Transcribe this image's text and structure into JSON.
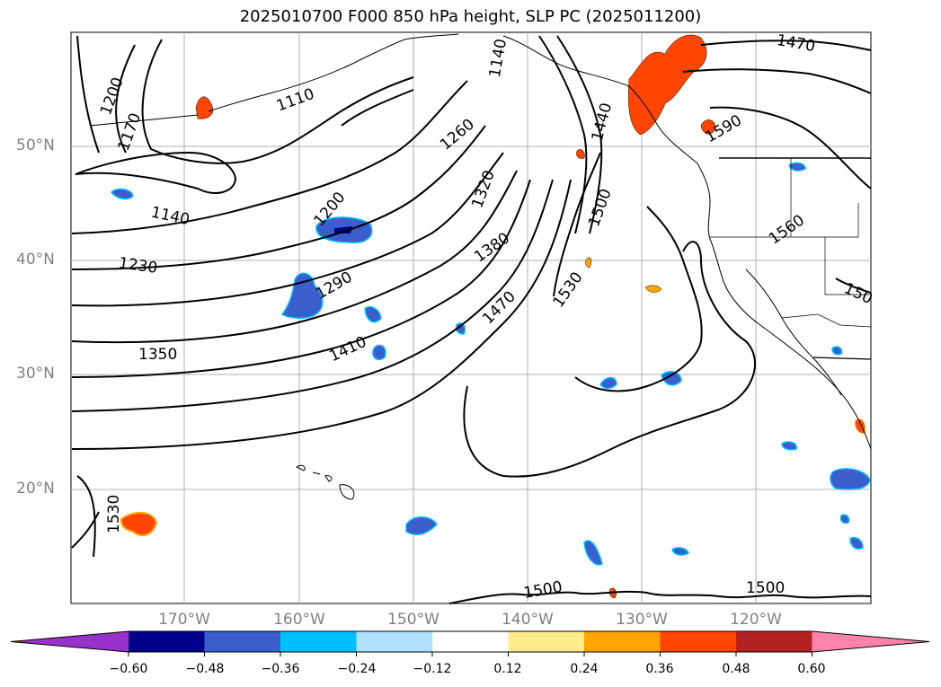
{
  "title": "2025010700 F000 850 hPa height, SLP PC (2025011200)",
  "map": {
    "lat_labels": [
      "50°N",
      "40°N",
      "30°N",
      "20°N"
    ],
    "lon_labels": [
      "170°W",
      "160°W",
      "150°W",
      "140°W",
      "130°W",
      "120°W"
    ],
    "contour_labels": [
      "1200",
      "1170",
      "1110",
      "1140",
      "1140",
      "1200",
      "1230",
      "1260",
      "1290",
      "1320",
      "1350",
      "1380",
      "1410",
      "1440",
      "1470",
      "1470",
      "1500",
      "1530",
      "1530",
      "1560",
      "1590",
      "150",
      "1500",
      "1500"
    ]
  },
  "colorbar": {
    "ticks": [
      "−0.60",
      "−0.48",
      "−0.36",
      "−0.24",
      "−0.12",
      "0.12",
      "0.24",
      "0.36",
      "0.48",
      "0.60"
    ],
    "colors": [
      "#9932cc",
      "#00008b",
      "#3a5fcd",
      "#00bfff",
      "#b0e2ff",
      "#ffffff",
      "#ffec8b",
      "#ffa500",
      "#ff4500",
      "#b22222",
      "#ff82ab"
    ]
  }
}
